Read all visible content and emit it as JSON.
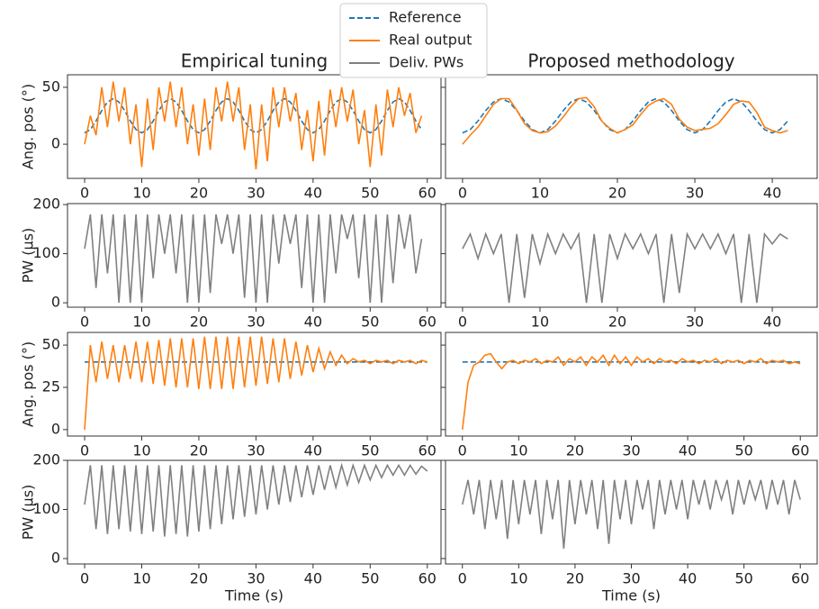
{
  "chart_data": [
    {
      "type": "line",
      "title": "Empirical tuning",
      "ylabel": "Ang. pos (°)",
      "x": [
        0,
        1,
        2,
        3,
        4,
        5,
        6,
        7,
        8,
        9,
        10,
        11,
        12,
        13,
        14,
        15,
        16,
        17,
        18,
        19,
        20,
        21,
        22,
        23,
        24,
        25,
        26,
        27,
        28,
        29,
        30,
        31,
        32,
        33,
        34,
        35,
        36,
        37,
        38,
        39,
        40,
        41,
        42,
        43,
        44,
        45,
        46,
        47,
        48,
        49,
        50,
        51,
        52,
        53,
        54,
        55,
        56,
        57,
        58,
        59
      ],
      "series": [
        {
          "name": "Reference",
          "color": "#1f77b4",
          "dashed": true,
          "values": [
            10,
            12.9,
            20.4,
            29.6,
            37.1,
            40,
            37.1,
            29.6,
            20.4,
            12.9,
            10,
            12.9,
            20.4,
            29.6,
            37.1,
            40,
            37.1,
            29.6,
            20.4,
            12.9,
            10,
            12.9,
            20.4,
            29.6,
            37.1,
            40,
            37.1,
            29.6,
            20.4,
            12.9,
            10,
            12.9,
            20.4,
            29.6,
            37.1,
            40,
            37.1,
            29.6,
            20.4,
            12.9,
            10,
            12.9,
            20.4,
            29.6,
            37.1,
            40,
            37.1,
            29.6,
            20.4,
            12.9,
            10,
            12.9,
            20.4,
            29.6,
            37.1,
            40,
            37.1,
            29.6,
            20.4,
            12.9
          ]
        },
        {
          "name": "Real output",
          "color": "#ff7f0e",
          "values": [
            0,
            25,
            8,
            50,
            15,
            55,
            20,
            50,
            0,
            35,
            -20,
            40,
            -5,
            50,
            20,
            55,
            15,
            50,
            0,
            35,
            -10,
            40,
            -5,
            50,
            20,
            55,
            20,
            50,
            -5,
            35,
            -22,
            35,
            -15,
            50,
            15,
            50,
            20,
            45,
            -5,
            30,
            -15,
            38,
            -10,
            48,
            15,
            50,
            20,
            48,
            0,
            30,
            -20,
            35,
            -10,
            48,
            15,
            50,
            25,
            45,
            10,
            25
          ]
        }
      ],
      "xlim": [
        -3,
        62.4
      ],
      "ylim": [
        -30,
        61
      ],
      "xticks": [
        0,
        10,
        20,
        30,
        40,
        50,
        60
      ],
      "yticks": [
        0,
        50
      ],
      "ytick_labels": true
    },
    {
      "type": "line",
      "title": "Proposed methodology",
      "x": [
        0,
        1,
        2,
        3,
        4,
        5,
        6,
        7,
        8,
        9,
        10,
        11,
        12,
        13,
        14,
        15,
        16,
        17,
        18,
        19,
        20,
        21,
        22,
        23,
        24,
        25,
        26,
        27,
        28,
        29,
        30,
        31,
        32,
        33,
        34,
        35,
        36,
        37,
        38,
        39,
        40,
        41,
        42
      ],
      "series": [
        {
          "color": "#1f77b4",
          "dashed": true,
          "values": [
            10,
            12.9,
            20.4,
            29.6,
            37.1,
            40,
            37.1,
            29.6,
            20.4,
            12.9,
            10,
            12.9,
            20.4,
            29.6,
            37.1,
            40,
            37.1,
            29.6,
            20.4,
            12.9,
            10,
            12.9,
            20.4,
            29.6,
            37.1,
            40,
            37.1,
            29.6,
            20.4,
            12.9,
            10,
            12.9,
            20.4,
            29.6,
            37.1,
            40,
            37.1,
            29.6,
            20.4,
            12.9,
            10,
            12.9,
            20.4
          ]
        },
        {
          "color": "#ff7f0e",
          "values": [
            0,
            8,
            15,
            25,
            35,
            40,
            40,
            30,
            18,
            12,
            10,
            11,
            16,
            24,
            33,
            40,
            41,
            33,
            20,
            14,
            10,
            13,
            17,
            26,
            34,
            38,
            40,
            35,
            22,
            15,
            12,
            13,
            14,
            18,
            26,
            35,
            38,
            37,
            28,
            15,
            12,
            10,
            12
          ]
        }
      ],
      "xlim": [
        -2.2,
        45.8
      ],
      "ylim": [
        -30,
        61
      ],
      "xticks": [
        0,
        10,
        20,
        30,
        40
      ],
      "yticks": [
        0,
        50
      ],
      "ytick_labels": false
    },
    {
      "type": "line",
      "ylabel": "PW (μs)",
      "x": [
        0,
        1,
        2,
        3,
        4,
        5,
        6,
        7,
        8,
        9,
        10,
        11,
        12,
        13,
        14,
        15,
        16,
        17,
        18,
        19,
        20,
        21,
        22,
        23,
        24,
        25,
        26,
        27,
        28,
        29,
        30,
        31,
        32,
        33,
        34,
        35,
        36,
        37,
        38,
        39,
        40,
        41,
        42,
        43,
        44,
        45,
        46,
        47,
        48,
        49,
        50,
        51,
        52,
        53,
        54,
        55,
        56,
        57,
        58,
        59
      ],
      "series": [
        {
          "name": "Deliv. PWs",
          "color": "#808080",
          "values": [
            110,
            180,
            30,
            180,
            60,
            180,
            0,
            180,
            0,
            180,
            0,
            180,
            50,
            180,
            100,
            180,
            60,
            180,
            0,
            180,
            0,
            180,
            20,
            180,
            120,
            180,
            100,
            180,
            10,
            180,
            0,
            180,
            0,
            180,
            80,
            180,
            120,
            180,
            30,
            180,
            0,
            180,
            0,
            180,
            60,
            180,
            130,
            180,
            50,
            180,
            0,
            180,
            0,
            180,
            40,
            180,
            110,
            180,
            60,
            130
          ]
        }
      ],
      "xlim": [
        -3,
        62.4
      ],
      "ylim": [
        -9,
        202
      ],
      "xticks": [
        0,
        10,
        20,
        30,
        40,
        50,
        60
      ],
      "yticks": [
        0,
        100,
        200
      ],
      "ytick_labels": true
    },
    {
      "type": "line",
      "x": [
        0,
        1,
        2,
        3,
        4,
        5,
        6,
        7,
        8,
        9,
        10,
        11,
        12,
        13,
        14,
        15,
        16,
        17,
        18,
        19,
        20,
        21,
        22,
        23,
        24,
        25,
        26,
        27,
        28,
        29,
        30,
        31,
        32,
        33,
        34,
        35,
        36,
        37,
        38,
        39,
        40,
        41,
        42
      ],
      "series": [
        {
          "color": "#808080",
          "values": [
            110,
            140,
            90,
            140,
            100,
            140,
            0,
            140,
            10,
            140,
            80,
            140,
            100,
            140,
            110,
            140,
            0,
            140,
            0,
            140,
            90,
            140,
            110,
            140,
            100,
            140,
            0,
            140,
            20,
            140,
            110,
            140,
            110,
            140,
            100,
            140,
            0,
            140,
            0,
            140,
            120,
            140,
            130
          ]
        }
      ],
      "xlim": [
        -2.2,
        45.8
      ],
      "ylim": [
        -9,
        202
      ],
      "xticks": [
        0,
        10,
        20,
        30,
        40
      ],
      "yticks": [
        0,
        100,
        200
      ],
      "ytick_labels": false
    },
    {
      "type": "line",
      "ylabel": "Ang. pos (°)",
      "x": [
        0,
        1,
        2,
        3,
        4,
        5,
        6,
        7,
        8,
        9,
        10,
        11,
        12,
        13,
        14,
        15,
        16,
        17,
        18,
        19,
        20,
        21,
        22,
        23,
        24,
        25,
        26,
        27,
        28,
        29,
        30,
        31,
        32,
        33,
        34,
        35,
        36,
        37,
        38,
        39,
        40,
        41,
        42,
        43,
        44,
        45,
        46,
        47,
        48,
        49,
        50,
        51,
        52,
        53,
        54,
        55,
        56,
        57,
        58,
        59,
        60
      ],
      "series": [
        {
          "color": "#1f77b4",
          "dashed": true,
          "x": [
            0,
            60
          ],
          "values": [
            40,
            40
          ]
        },
        {
          "color": "#ff7f0e",
          "values": [
            0,
            50,
            28,
            52,
            30,
            50,
            28,
            50,
            30,
            52,
            28,
            52,
            27,
            53,
            26,
            54,
            25,
            54,
            25,
            54,
            24,
            55,
            24,
            55,
            24,
            55,
            24,
            55,
            25,
            55,
            26,
            55,
            27,
            54,
            28,
            54,
            30,
            52,
            32,
            50,
            34,
            48,
            36,
            46,
            38,
            44,
            39,
            42,
            40,
            41,
            39,
            41,
            40,
            41,
            39,
            41,
            40,
            41,
            39,
            41,
            40
          ]
        }
      ],
      "xlim": [
        -3,
        62.4
      ],
      "ylim": [
        -3.8,
        57.5
      ],
      "xticks": [
        0,
        10,
        20,
        30,
        40,
        50,
        60
      ],
      "yticks": [
        0,
        25,
        50
      ],
      "ytick_labels": true
    },
    {
      "type": "line",
      "x": [
        0,
        1,
        2,
        3,
        4,
        5,
        6,
        7,
        8,
        9,
        10,
        11,
        12,
        13,
        14,
        15,
        16,
        17,
        18,
        19,
        20,
        21,
        22,
        23,
        24,
        25,
        26,
        27,
        28,
        29,
        30,
        31,
        32,
        33,
        34,
        35,
        36,
        37,
        38,
        39,
        40,
        41,
        42,
        43,
        44,
        45,
        46,
        47,
        48,
        49,
        50,
        51,
        52,
        53,
        54,
        55,
        56,
        57,
        58,
        59,
        60
      ],
      "series": [
        {
          "color": "#1f77b4",
          "dashed": true,
          "x": [
            0,
            60
          ],
          "values": [
            40,
            40
          ]
        },
        {
          "color": "#ff7f0e",
          "values": [
            0,
            28,
            38,
            40,
            44,
            45,
            40,
            36,
            40,
            41,
            39,
            41,
            40,
            42,
            39,
            41,
            40,
            43,
            38,
            42,
            40,
            43,
            38,
            43,
            40,
            44,
            38,
            44,
            39,
            43,
            38,
            43,
            40,
            42,
            39,
            42,
            40,
            41,
            39,
            42,
            40,
            41,
            39,
            41,
            40,
            42,
            39,
            41,
            40,
            41,
            39,
            41,
            40,
            42,
            39,
            41,
            40,
            41,
            39,
            40,
            39
          ]
        }
      ],
      "xlim": [
        -3,
        63
      ],
      "ylim": [
        -3.8,
        57.5
      ],
      "xticks": [
        0,
        10,
        20,
        30,
        40,
        50,
        60
      ],
      "yticks": [
        0,
        25,
        50
      ],
      "ytick_labels": false
    },
    {
      "type": "line",
      "ylabel": "PW (μs)",
      "xlabel": "Time (s)",
      "x": [
        0,
        1,
        2,
        3,
        4,
        5,
        6,
        7,
        8,
        9,
        10,
        11,
        12,
        13,
        14,
        15,
        16,
        17,
        18,
        19,
        20,
        21,
        22,
        23,
        24,
        25,
        26,
        27,
        28,
        29,
        30,
        31,
        32,
        33,
        34,
        35,
        36,
        37,
        38,
        39,
        40,
        41,
        42,
        43,
        44,
        45,
        46,
        47,
        48,
        49,
        50,
        51,
        52,
        53,
        54,
        55,
        56,
        57,
        58,
        59,
        60
      ],
      "series": [
        {
          "color": "#808080",
          "values": [
            110,
            190,
            60,
            190,
            50,
            190,
            60,
            190,
            55,
            190,
            50,
            190,
            55,
            190,
            45,
            190,
            50,
            190,
            45,
            190,
            55,
            190,
            60,
            190,
            70,
            190,
            80,
            190,
            85,
            190,
            90,
            190,
            100,
            190,
            110,
            190,
            115,
            190,
            125,
            190,
            130,
            190,
            140,
            190,
            145,
            190,
            150,
            190,
            155,
            190,
            160,
            190,
            165,
            190,
            170,
            190,
            170,
            190,
            172,
            188,
            178
          ]
        }
      ],
      "xlim": [
        -3,
        62.4
      ],
      "ylim": [
        -11,
        200
      ],
      "xticks": [
        0,
        10,
        20,
        30,
        40,
        50,
        60
      ],
      "yticks": [
        0,
        100,
        200
      ],
      "ytick_labels": true
    },
    {
      "type": "line",
      "xlabel": "Time (s)",
      "x": [
        0,
        1,
        2,
        3,
        4,
        5,
        6,
        7,
        8,
        9,
        10,
        11,
        12,
        13,
        14,
        15,
        16,
        17,
        18,
        19,
        20,
        21,
        22,
        23,
        24,
        25,
        26,
        27,
        28,
        29,
        30,
        31,
        32,
        33,
        34,
        35,
        36,
        37,
        38,
        39,
        40,
        41,
        42,
        43,
        44,
        45,
        46,
        47,
        48,
        49,
        50,
        51,
        52,
        53,
        54,
        55,
        56,
        57,
        58,
        59,
        60
      ],
      "series": [
        {
          "color": "#808080",
          "values": [
            110,
            160,
            90,
            160,
            60,
            160,
            80,
            160,
            40,
            160,
            70,
            160,
            90,
            160,
            50,
            160,
            80,
            160,
            20,
            160,
            70,
            160,
            90,
            160,
            60,
            160,
            30,
            160,
            80,
            160,
            70,
            160,
            100,
            160,
            60,
            160,
            90,
            160,
            100,
            160,
            80,
            160,
            110,
            160,
            100,
            160,
            120,
            160,
            90,
            160,
            110,
            160,
            120,
            160,
            100,
            160,
            110,
            160,
            90,
            160,
            120
          ]
        }
      ],
      "xlim": [
        -3,
        63
      ],
      "ylim": [
        -11,
        200
      ],
      "xticks": [
        0,
        10,
        20,
        30,
        40,
        50,
        60
      ],
      "yticks": [
        0,
        100,
        200
      ],
      "ytick_labels": false
    }
  ]
}
